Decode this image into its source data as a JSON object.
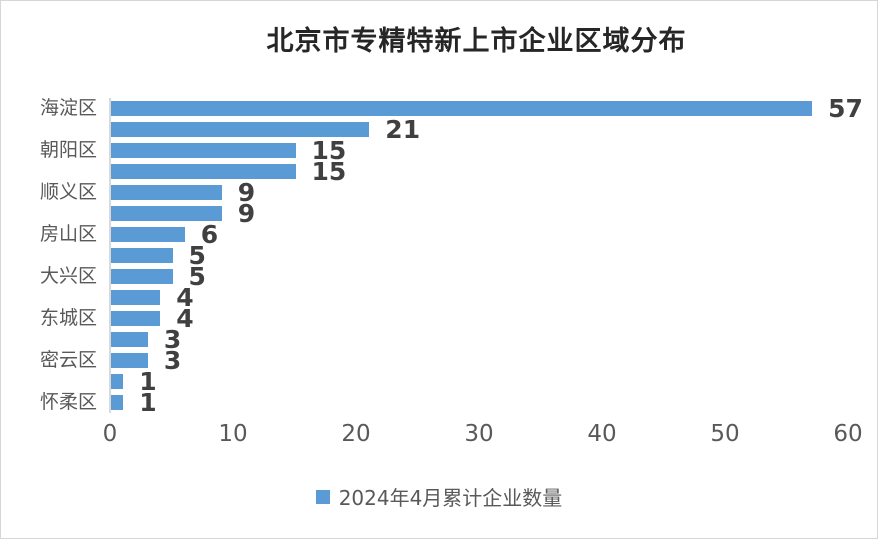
{
  "title": "北京市专精特新上市企业区域分布",
  "legend": {
    "label": "2024年4月累计企业数量",
    "swatch_color": "#5B9BD5"
  },
  "colors": {
    "bar": "#5B9BD5",
    "axis_line": "#D9D9D9",
    "title_text": "#262626",
    "axis_text": "#595959",
    "data_label_text": "#404040"
  },
  "chart_data": {
    "type": "bar",
    "orientation": "horizontal",
    "title": "北京市专精特新上市企业区域分布",
    "categories": [
      "海淀区",
      "",
      "朝阳区",
      "",
      "顺义区",
      "",
      "房山区",
      "",
      "大兴区",
      "",
      "东城区",
      "",
      "密云区",
      "",
      "怀柔区"
    ],
    "category_label_interval": 2,
    "series": [
      {
        "name": "2024年4月累计企业数量",
        "values": [
          57,
          21,
          15,
          15,
          9,
          9,
          6,
          5,
          5,
          4,
          4,
          3,
          3,
          1,
          1
        ]
      }
    ],
    "data_labels_shown": true,
    "xlabel": "",
    "ylabel": "",
    "xlim": [
      0,
      60
    ],
    "x_ticks": [
      0,
      10,
      20,
      30,
      40,
      50,
      60
    ],
    "grid": false,
    "legend_position": "bottom",
    "bar_color": "#5B9BD5"
  }
}
